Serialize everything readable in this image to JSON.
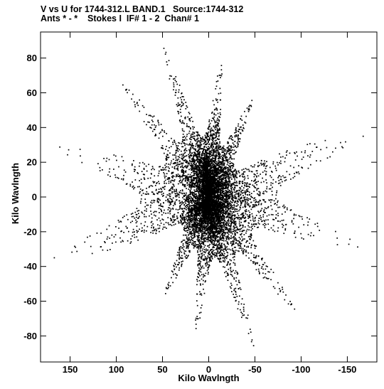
{
  "chart_data": {
    "type": "scatter",
    "title_line1": "V vs U for 1744-312.L BAND.1   Source:1744-312",
    "title_line2": "Ants * - *    Stokes I  IF# 1 - 2  Chan# 1",
    "xlabel": "Kilo Wavlngth",
    "ylabel": "Kilo Wavlngth",
    "xlim": [
      182,
      -182
    ],
    "ylim": [
      -95,
      95
    ],
    "x_ticks": [
      150,
      100,
      50,
      0,
      -50,
      -100,
      -150
    ],
    "y_ticks": [
      80,
      60,
      40,
      20,
      0,
      -20,
      -40,
      -60,
      -80
    ],
    "grid": false,
    "marker_color": "#000000",
    "arms": [
      {
        "angle_deg": 60,
        "max_radius": 103
      },
      {
        "angle_deg": 100,
        "max_radius": 85
      },
      {
        "angle_deg": 130,
        "max_radius": 78
      },
      {
        "angle_deg": 168,
        "max_radius": 178
      },
      {
        "angle_deg": 190,
        "max_radius": 178
      },
      {
        "angle_deg": 215,
        "max_radius": 121
      },
      {
        "angle_deg": 240,
        "max_radius": 103
      },
      {
        "angle_deg": 280,
        "max_radius": 85
      },
      {
        "angle_deg": 310,
        "max_radius": 78
      },
      {
        "angle_deg": 348,
        "max_radius": 178
      },
      {
        "angle_deg": 10,
        "max_radius": 178
      },
      {
        "angle_deg": 35,
        "max_radius": 121
      }
    ]
  }
}
